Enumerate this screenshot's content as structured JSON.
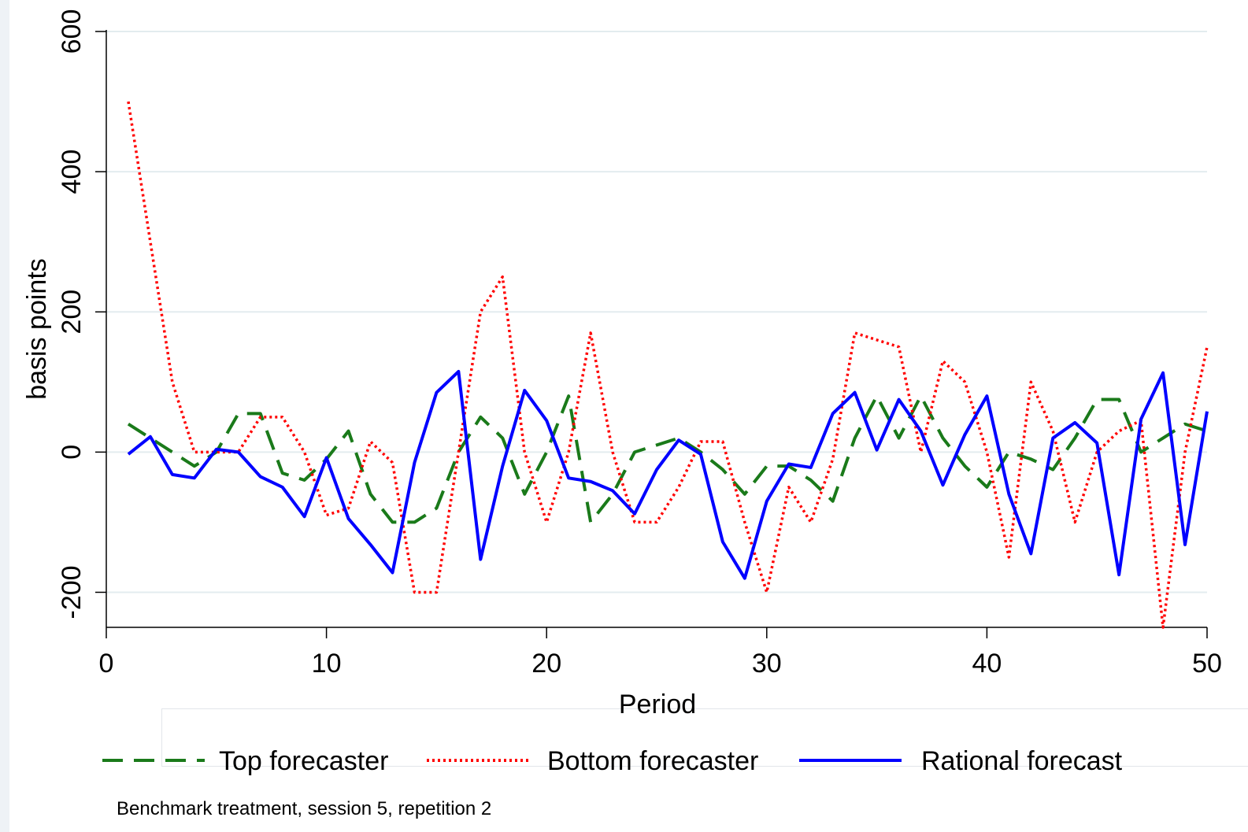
{
  "chart_data": {
    "type": "line",
    "title": "",
    "xlabel": "Period",
    "ylabel": "basis points",
    "xlim": [
      0,
      50
    ],
    "ylim": [
      -250,
      600
    ],
    "xticks": [
      0,
      10,
      20,
      30,
      40,
      50
    ],
    "yticks": [
      -200,
      0,
      200,
      400,
      600
    ],
    "grid": true,
    "legend_position": "bottom",
    "note": "Benchmark treatment, session 5, repetition 2",
    "x": [
      1,
      2,
      3,
      4,
      5,
      6,
      7,
      8,
      9,
      10,
      11,
      12,
      13,
      14,
      15,
      16,
      17,
      18,
      19,
      20,
      21,
      22,
      23,
      24,
      25,
      26,
      27,
      28,
      29,
      30,
      31,
      32,
      33,
      34,
      35,
      36,
      37,
      38,
      39,
      40,
      41,
      42,
      43,
      44,
      45,
      46,
      47,
      48,
      49,
      50
    ],
    "series": [
      {
        "name": "Top forecaster",
        "color": "#1a7a1a",
        "dash": "dashed",
        "values": [
          40,
          20,
          0,
          -20,
          0,
          55,
          55,
          -30,
          -40,
          -10,
          30,
          -60,
          -100,
          -100,
          -80,
          0,
          50,
          20,
          -60,
          0,
          80,
          -100,
          -60,
          0,
          10,
          20,
          0,
          -25,
          -60,
          -20,
          -20,
          -40,
          -70,
          20,
          80,
          20,
          80,
          20,
          -20,
          -50,
          0,
          -10,
          -25,
          20,
          75,
          75,
          0,
          20,
          40,
          30
        ]
      },
      {
        "name": "Bottom forecaster",
        "color": "#ff0000",
        "dash": "dotted",
        "values": [
          500,
          300,
          100,
          0,
          0,
          0,
          50,
          50,
          0,
          -90,
          -80,
          15,
          -15,
          -200,
          -200,
          0,
          200,
          250,
          0,
          -100,
          0,
          170,
          0,
          -100,
          -100,
          -50,
          15,
          15,
          -100,
          -200,
          -50,
          -100,
          -10,
          170,
          160,
          150,
          0,
          130,
          100,
          0,
          -150,
          100,
          30,
          -100,
          0,
          30,
          45,
          -250,
          0,
          150
        ]
      },
      {
        "name": "Rational forecast",
        "color": "#0000ff",
        "dash": "solid",
        "values": [
          -3,
          22,
          -32,
          -37,
          4,
          0,
          -35,
          -50,
          -92,
          -8,
          -95,
          -132,
          -172,
          -15,
          85,
          115,
          -153,
          -20,
          88,
          45,
          -37,
          -42,
          -55,
          -88,
          -25,
          17,
          -3,
          -128,
          -180,
          -70,
          -17,
          -22,
          55,
          85,
          3,
          75,
          30,
          -47,
          25,
          80,
          -60,
          -145,
          20,
          42,
          13,
          -175,
          47,
          113,
          -132,
          58
        ]
      }
    ]
  }
}
